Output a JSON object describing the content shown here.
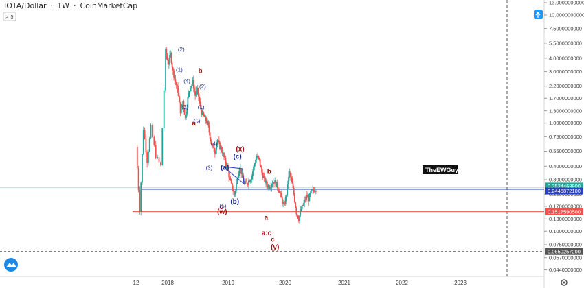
{
  "header": {
    "symbol": "IOTA/Dollar",
    "interval": "1W",
    "source": "CoinMarketCap",
    "collapse_glyph": ">",
    "indicator_count": "5"
  },
  "watermark": "TheEWGuy",
  "colors": {
    "up": "#26a69a",
    "down": "#ef5350",
    "support_blue": "#2a3fbf",
    "support_red": "#ef5350",
    "annotation_blue": "#1a2a8a",
    "annotation_red": "#a01010",
    "price_tag_teal": "#26a69a",
    "price_tag_blue": "#2a3fbf",
    "price_tag_red": "#ef5350",
    "price_tag_dark": "#555555"
  },
  "icons": {
    "logo": "tradingview-cloud-icon",
    "settings": "gear-icon",
    "scale_toggle": "chart-scale-icon"
  },
  "chart_data": {
    "type": "candlestick",
    "title": "IOTA/Dollar",
    "y_scale": "log",
    "ylim": [
      0.04,
      13
    ],
    "x_ticks": [
      "12",
      "2018",
      "2019",
      "2020",
      "2021",
      "2022",
      "2023"
    ],
    "x_tick_dates": [
      "2017-12-01",
      "2018-01-01",
      "2019-01-01",
      "2020-01-01",
      "2021-01-01",
      "2022-01-01",
      "2023-01-01"
    ],
    "y_ticks": [
      "13.0000000000",
      "10.0000000000",
      "7.5000000000",
      "5.5000000000",
      "4.0000000000",
      "3.0000000000",
      "2.2000000000",
      "1.7000000000",
      "1.3000000000",
      "1.0000000000",
      "0.7500000000",
      "0.5500000000",
      "0.4000000000",
      "0.3000000000",
      "0.2200000000",
      "0.1700000000",
      "0.1300000000",
      "0.1000000000",
      "0.0750000000",
      "0.0570000000",
      "0.0440000000"
    ],
    "y_tick_values": [
      13,
      10,
      7.5,
      5.5,
      4,
      3,
      2.2,
      1.7,
      1.3,
      1.0,
      0.75,
      0.55,
      0.4,
      0.3,
      0.22,
      0.17,
      0.13,
      0.1,
      0.075,
      0.057,
      0.044
    ],
    "price_lines": [
      {
        "label": "0.2524468900",
        "value": 0.2524,
        "color": "#26a69a"
      },
      {
        "label": "0.2445872100",
        "value": 0.2446,
        "color": "#2a3fbf"
      },
      {
        "label": "0.1517590500",
        "value": 0.1518,
        "color": "#ef5350"
      },
      {
        "label": "0.0650257200",
        "value": 0.065,
        "color": "#555555"
      }
    ],
    "path": [
      [
        0,
        0.6
      ],
      [
        1.5,
        0.16
      ],
      [
        3,
        0.9
      ],
      [
        4.5,
        0.45
      ],
      [
        6,
        0.9
      ],
      [
        8,
        0.5
      ],
      [
        10,
        0.4
      ],
      [
        12,
        4.6
      ],
      [
        13,
        3.6
      ],
      [
        14,
        4.3
      ],
      [
        15,
        3.0
      ],
      [
        16,
        2.4
      ],
      [
        17,
        2.0
      ],
      [
        18,
        1.3
      ],
      [
        19,
        1.6
      ],
      [
        20,
        1.1
      ],
      [
        21,
        1.7
      ],
      [
        22,
        2.2
      ],
      [
        23,
        2.4
      ],
      [
        24,
        1.8
      ],
      [
        25,
        2.0
      ],
      [
        26,
        1.4
      ],
      [
        27,
        1.2
      ],
      [
        28,
        1.1
      ],
      [
        29,
        1.0
      ],
      [
        30,
        0.75
      ],
      [
        31,
        0.6
      ],
      [
        32,
        0.55
      ],
      [
        33,
        0.7
      ],
      [
        34,
        0.6
      ],
      [
        35,
        0.55
      ],
      [
        36,
        0.45
      ],
      [
        37,
        0.4
      ],
      [
        38,
        0.3
      ],
      [
        39,
        0.25
      ],
      [
        40,
        0.22
      ],
      [
        41,
        0.3
      ],
      [
        42,
        0.4
      ],
      [
        43,
        0.33
      ],
      [
        44,
        0.27
      ],
      [
        45,
        0.28
      ],
      [
        46,
        0.3
      ],
      [
        47,
        0.33
      ],
      [
        48,
        0.42
      ],
      [
        49,
        0.5
      ],
      [
        50,
        0.45
      ],
      [
        51,
        0.35
      ],
      [
        52,
        0.3
      ],
      [
        53,
        0.27
      ],
      [
        54,
        0.26
      ],
      [
        55,
        0.28
      ],
      [
        56,
        0.29
      ],
      [
        57,
        0.27
      ],
      [
        58,
        0.24
      ],
      [
        59,
        0.2
      ],
      [
        60,
        0.17
      ],
      [
        61,
        0.22
      ],
      [
        62,
        0.35
      ],
      [
        63,
        0.3
      ],
      [
        64,
        0.22
      ],
      [
        65,
        0.15
      ],
      [
        66,
        0.13
      ],
      [
        67,
        0.16
      ],
      [
        68,
        0.18
      ],
      [
        69,
        0.21
      ],
      [
        70,
        0.2
      ],
      [
        71,
        0.23
      ],
      [
        72,
        0.24
      ],
      [
        73,
        0.25
      ]
    ]
  },
  "annotations": [
    {
      "text": "(2)",
      "color": "blue",
      "price": 4.6,
      "date_frac": 0.118
    },
    {
      "text": "(1)",
      "color": "blue",
      "price": 3.0,
      "date_frac": 0.113
    },
    {
      "text": "(4)",
      "color": "blue",
      "price": 2.35,
      "date_frac": 0.133
    },
    {
      "text": "b",
      "color": "red",
      "price": 2.9,
      "date_frac": 0.168
    },
    {
      "text": "(2)",
      "color": "blue",
      "price": 2.1,
      "date_frac": 0.174
    },
    {
      "text": "(3)",
      "color": "blue",
      "price": 1.35,
      "date_frac": 0.128
    },
    {
      "text": "(1)",
      "color": "blue",
      "price": 1.35,
      "date_frac": 0.17
    },
    {
      "text": "(5)",
      "color": "blue",
      "price": 1.0,
      "date_frac": 0.159
    },
    {
      "text": "a",
      "color": "red",
      "price": 0.95,
      "date_frac": 0.151
    },
    {
      "text": "(4)",
      "color": "blue",
      "price": 0.62,
      "date_frac": 0.204
    },
    {
      "text": "(x)",
      "color": "red",
      "price": 0.55,
      "date_frac": 0.272
    },
    {
      "text": "(c)",
      "color": "blue",
      "price": 0.47,
      "date_frac": 0.265
    },
    {
      "text": "(3)",
      "color": "blue",
      "price": 0.37,
      "date_frac": 0.191
    },
    {
      "text": "(a)",
      "color": "blue",
      "price": 0.37,
      "date_frac": 0.232
    },
    {
      "text": "b",
      "color": "red",
      "price": 0.34,
      "date_frac": 0.348
    },
    {
      "text": "(b)",
      "color": "blue",
      "price": 0.18,
      "date_frac": 0.258
    },
    {
      "text": "c",
      "color": "red",
      "price": 0.16,
      "date_frac": 0.223
    },
    {
      "text": "(5)",
      "color": "blue",
      "price": 0.165,
      "date_frac": 0.227
    },
    {
      "text": "(w)",
      "color": "red",
      "price": 0.145,
      "date_frac": 0.225
    },
    {
      "text": "a",
      "color": "red",
      "price": 0.128,
      "date_frac": 0.34
    },
    {
      "text": "a:c",
      "color": "red",
      "price": 0.092,
      "date_frac": 0.341
    },
    {
      "text": "c",
      "color": "red",
      "price": 0.08,
      "date_frac": 0.357
    },
    {
      "text": "(y)",
      "color": "red",
      "price": 0.068,
      "date_frac": 0.363
    }
  ]
}
